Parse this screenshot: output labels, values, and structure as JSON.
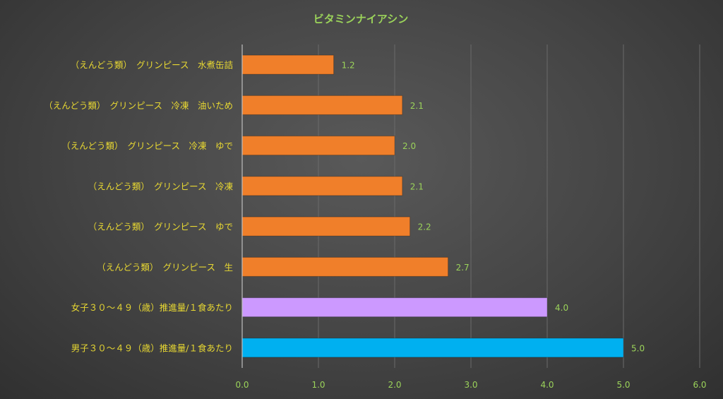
{
  "chart_data": {
    "type": "bar",
    "orientation": "horizontal",
    "title": "ビタミンナイアシン",
    "categories": [
      "（えんどう類）　グリンピース　水煮缶詰",
      "（えんどう類）　グリンピース　冷凍　油いため",
      "（えんどう類）　グリンピース　冷凍　ゆで",
      "（えんどう類）　グリンピース　冷凍",
      "（えんどう類）　グリンピース　ゆで",
      "（えんどう類）　グリンピース　生",
      "女子３０～４９（歳）推進量/１食あたり",
      "男子３０～４９（歳）推進量/１食あたり"
    ],
    "values": [
      1.2,
      2.1,
      2.0,
      2.1,
      2.2,
      2.7,
      4.0,
      5.0
    ],
    "value_labels": [
      "1.2",
      "2.1",
      "2.0",
      "2.1",
      "2.2",
      "2.7",
      "4.0",
      "5.0"
    ],
    "bar_colors": [
      "#f07f2a",
      "#f07f2a",
      "#f07f2a",
      "#f07f2a",
      "#f07f2a",
      "#f07f2a",
      "#cc99ff",
      "#00b0f0"
    ],
    "xlim": [
      0,
      6
    ],
    "xticks": [
      "0.0",
      "1.0",
      "2.0",
      "3.0",
      "4.0",
      "5.0",
      "6.0"
    ],
    "grid": true,
    "legend": "none"
  }
}
